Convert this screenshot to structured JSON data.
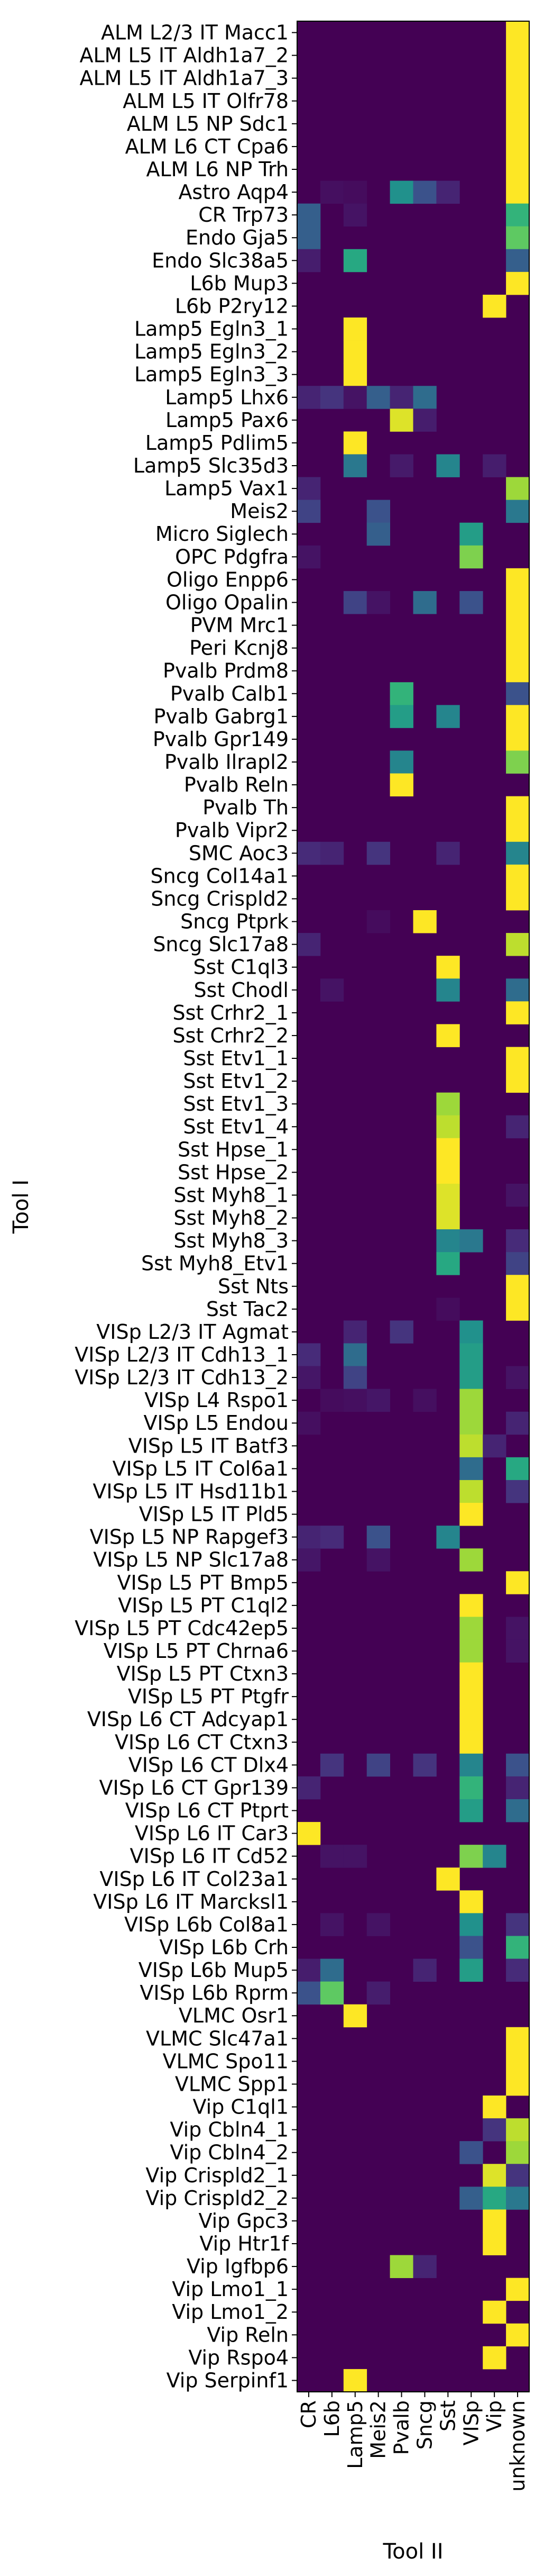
{
  "chart_data": {
    "type": "heatmap",
    "title": "",
    "xlabel": "Tool II",
    "ylabel": "Tool I",
    "grid": false,
    "colormap": [
      "#440154",
      "#472d7b",
      "#3b528b",
      "#2c728e",
      "#21918c",
      "#28ae80",
      "#5ec962",
      "#addc30",
      "#fde725"
    ],
    "colormap_name": "viridis",
    "value_range": [
      0,
      1
    ],
    "x_categories": [
      "CR",
      "L6b",
      "Lamp5",
      "Meis2",
      "Pvalb",
      "Sncg",
      "Sst",
      "VISp",
      "Vip",
      "unknown"
    ],
    "y_categories": [
      "ALM L2/3 IT Macc1",
      "ALM L5 IT Aldh1a7_2",
      "ALM L5 IT Aldh1a7_3",
      "ALM L5 IT Olfr78",
      "ALM L5 NP Sdc1",
      "ALM L6 CT Cpa6",
      "ALM L6 NP Trh",
      "Astro Aqp4",
      "CR Trp73",
      "Endo Gja5",
      "Endo Slc38a5",
      "L6b Mup3",
      "L6b P2ry12",
      "Lamp5 Egln3_1",
      "Lamp5 Egln3_2",
      "Lamp5 Egln3_3",
      "Lamp5 Lhx6",
      "Lamp5 Pax6",
      "Lamp5 Pdlim5",
      "Lamp5 Slc35d3",
      "Lamp5 Vax1",
      "Meis2",
      "Micro Siglech",
      "OPC Pdgfra",
      "Oligo Enpp6",
      "Oligo Opalin",
      "PVM Mrc1",
      "Peri Kcnj8",
      "Pvalb  Prdm8",
      "Pvalb Calb1",
      "Pvalb Gabrg1",
      "Pvalb Gpr149",
      "Pvalb Ilrapl2",
      "Pvalb Reln",
      "Pvalb Th",
      "Pvalb Vipr2",
      "SMC Aoc3",
      "Sncg Col14a1",
      "Sncg Crispld2",
      "Sncg Ptprk",
      "Sncg Slc17a8",
      "Sst C1ql3",
      "Sst Chodl",
      "Sst Crhr2_1",
      "Sst Crhr2_2",
      "Sst Etv1_1",
      "Sst Etv1_2",
      "Sst Etv1_3",
      "Sst Etv1_4",
      "Sst Hpse_1",
      "Sst Hpse_2",
      "Sst Myh8_1",
      "Sst Myh8_2",
      "Sst Myh8_3",
      "Sst Myh8_Etv1",
      "Sst Nts",
      "Sst Tac2",
      "VISp L2/3 IT Agmat",
      "VISp L2/3 IT Cdh13_1",
      "VISp L2/3 IT Cdh13_2",
      "VISp L4 Rspo1",
      "VISp L5 Endou",
      "VISp L5 IT Batf3",
      "VISp L5 IT Col6a1",
      "VISp L5 IT Hsd11b1",
      "VISp L5 IT Pld5",
      "VISp L5 NP Rapgef3",
      "VISp L5 NP Slc17a8",
      "VISp L5 PT Bmp5",
      "VISp L5 PT C1ql2",
      "VISp L5 PT Cdc42ep5",
      "VISp L5 PT Chrna6",
      "VISp L5 PT Ctxn3",
      "VISp L5 PT Ptgfr",
      "VISp L6 CT Adcyap1",
      "VISp L6 CT Ctxn3",
      "VISp L6 CT Dlx4",
      "VISp L6 CT Gpr139",
      "VISp L6 CT Ptprt",
      "VISp L6 IT Car3",
      "VISp L6 IT Cd52",
      "VISp L6 IT Col23a1",
      "VISp L6 IT Marcksl1",
      "VISp L6b Col8a1",
      "VISp L6b Crh",
      "VISp L6b Mup5",
      "VISp L6b Rprm",
      "VLMC Osr1",
      "VLMC Slc47a1",
      "VLMC Spo11",
      "VLMC Spp1",
      "Vip C1ql1",
      "Vip Cbln4_1",
      "Vip Cbln4_2",
      "Vip Crispld2_1",
      "Vip Crispld2_2",
      "Vip Gpc3",
      "Vip Htr1f",
      "Vip Igfbp6",
      "Vip Lmo1_1",
      "Vip Lmo1_2",
      "Vip Reln",
      "Vip Rspo4",
      "Vip Serpinf1"
    ],
    "cells": [
      [
        0,
        9,
        1.0
      ],
      [
        1,
        9,
        1.0
      ],
      [
        2,
        9,
        1.0
      ],
      [
        3,
        9,
        1.0
      ],
      [
        4,
        9,
        1.0
      ],
      [
        5,
        9,
        1.0
      ],
      [
        6,
        9,
        1.0
      ],
      [
        7,
        1,
        0.04
      ],
      [
        7,
        2,
        0.03
      ],
      [
        7,
        4,
        0.5
      ],
      [
        7,
        5,
        0.25
      ],
      [
        7,
        6,
        0.1
      ],
      [
        7,
        9,
        1.0
      ],
      [
        8,
        0,
        0.3
      ],
      [
        8,
        2,
        0.05
      ],
      [
        8,
        9,
        0.65
      ],
      [
        9,
        0,
        0.3
      ],
      [
        9,
        9,
        0.75
      ],
      [
        10,
        0,
        0.08
      ],
      [
        10,
        2,
        0.6
      ],
      [
        10,
        9,
        0.3
      ],
      [
        11,
        9,
        1.0
      ],
      [
        12,
        8,
        1.0
      ],
      [
        13,
        2,
        1.0
      ],
      [
        14,
        2,
        1.0
      ],
      [
        15,
        2,
        1.0
      ],
      [
        16,
        0,
        0.1
      ],
      [
        16,
        1,
        0.15
      ],
      [
        16,
        2,
        0.05
      ],
      [
        16,
        3,
        0.3
      ],
      [
        16,
        4,
        0.1
      ],
      [
        16,
        5,
        0.35
      ],
      [
        17,
        4,
        0.95
      ],
      [
        17,
        5,
        0.08
      ],
      [
        18,
        2,
        1.0
      ],
      [
        19,
        2,
        0.4
      ],
      [
        19,
        4,
        0.07
      ],
      [
        19,
        6,
        0.45
      ],
      [
        19,
        8,
        0.08
      ],
      [
        20,
        0,
        0.1
      ],
      [
        20,
        9,
        0.85
      ],
      [
        21,
        0,
        0.2
      ],
      [
        21,
        3,
        0.25
      ],
      [
        21,
        9,
        0.4
      ],
      [
        22,
        3,
        0.3
      ],
      [
        22,
        7,
        0.55
      ],
      [
        23,
        0,
        0.05
      ],
      [
        23,
        7,
        0.8
      ],
      [
        24,
        9,
        1.0
      ],
      [
        25,
        2,
        0.2
      ],
      [
        25,
        3,
        0.05
      ],
      [
        25,
        5,
        0.35
      ],
      [
        25,
        7,
        0.25
      ],
      [
        25,
        9,
        1.0
      ],
      [
        26,
        9,
        1.0
      ],
      [
        27,
        9,
        1.0
      ],
      [
        28,
        9,
        1.0
      ],
      [
        29,
        4,
        0.65
      ],
      [
        29,
        9,
        0.25
      ],
      [
        30,
        4,
        0.55
      ],
      [
        30,
        6,
        0.45
      ],
      [
        30,
        9,
        1.0
      ],
      [
        31,
        9,
        1.0
      ],
      [
        32,
        4,
        0.45
      ],
      [
        32,
        9,
        0.8
      ],
      [
        33,
        4,
        1.0
      ],
      [
        34,
        9,
        1.0
      ],
      [
        35,
        9,
        1.0
      ],
      [
        36,
        0,
        0.12
      ],
      [
        36,
        1,
        0.1
      ],
      [
        36,
        3,
        0.15
      ],
      [
        36,
        6,
        0.1
      ],
      [
        36,
        9,
        0.45
      ],
      [
        37,
        9,
        1.0
      ],
      [
        38,
        9,
        1.0
      ],
      [
        39,
        3,
        0.03
      ],
      [
        39,
        5,
        1.0
      ],
      [
        40,
        0,
        0.1
      ],
      [
        40,
        9,
        0.9
      ],
      [
        41,
        6,
        1.0
      ],
      [
        42,
        1,
        0.05
      ],
      [
        42,
        6,
        0.45
      ],
      [
        42,
        9,
        0.35
      ],
      [
        43,
        9,
        1.0
      ],
      [
        44,
        6,
        1.0
      ],
      [
        45,
        9,
        1.0
      ],
      [
        46,
        9,
        1.0
      ],
      [
        47,
        6,
        0.85
      ],
      [
        48,
        6,
        0.9
      ],
      [
        48,
        9,
        0.1
      ],
      [
        49,
        6,
        1.0
      ],
      [
        50,
        6,
        1.0
      ],
      [
        51,
        6,
        0.95
      ],
      [
        51,
        9,
        0.05
      ],
      [
        52,
        6,
        0.95
      ],
      [
        53,
        6,
        0.45
      ],
      [
        53,
        7,
        0.4
      ],
      [
        53,
        9,
        0.12
      ],
      [
        54,
        6,
        0.6
      ],
      [
        54,
        9,
        0.2
      ],
      [
        55,
        9,
        1.0
      ],
      [
        56,
        6,
        0.03
      ],
      [
        56,
        9,
        1.0
      ],
      [
        57,
        2,
        0.1
      ],
      [
        57,
        4,
        0.15
      ],
      [
        57,
        7,
        0.5
      ],
      [
        58,
        0,
        0.12
      ],
      [
        58,
        2,
        0.35
      ],
      [
        58,
        7,
        0.55
      ],
      [
        59,
        0,
        0.06
      ],
      [
        59,
        2,
        0.2
      ],
      [
        59,
        7,
        0.55
      ],
      [
        59,
        9,
        0.05
      ],
      [
        60,
        1,
        0.03
      ],
      [
        60,
        2,
        0.04
      ],
      [
        60,
        3,
        0.06
      ],
      [
        60,
        5,
        0.04
      ],
      [
        60,
        7,
        0.85
      ],
      [
        61,
        0,
        0.04
      ],
      [
        61,
        7,
        0.85
      ],
      [
        61,
        9,
        0.1
      ],
      [
        62,
        7,
        0.9
      ],
      [
        62,
        8,
        0.1
      ],
      [
        63,
        7,
        0.35
      ],
      [
        63,
        9,
        0.6
      ],
      [
        64,
        7,
        0.9
      ],
      [
        64,
        9,
        0.15
      ],
      [
        65,
        7,
        1.0
      ],
      [
        66,
        0,
        0.1
      ],
      [
        66,
        1,
        0.12
      ],
      [
        66,
        3,
        0.25
      ],
      [
        66,
        6,
        0.45
      ],
      [
        67,
        0,
        0.06
      ],
      [
        67,
        3,
        0.05
      ],
      [
        67,
        7,
        0.85
      ],
      [
        68,
        9,
        1.0
      ],
      [
        69,
        7,
        1.0
      ],
      [
        70,
        7,
        0.85
      ],
      [
        70,
        9,
        0.05
      ],
      [
        71,
        7,
        0.85
      ],
      [
        71,
        9,
        0.05
      ],
      [
        72,
        7,
        1.0
      ],
      [
        73,
        7,
        1.0
      ],
      [
        74,
        7,
        1.0
      ],
      [
        75,
        7,
        1.0
      ],
      [
        76,
        1,
        0.15
      ],
      [
        76,
        3,
        0.2
      ],
      [
        76,
        5,
        0.15
      ],
      [
        76,
        7,
        0.45
      ],
      [
        76,
        9,
        0.25
      ],
      [
        77,
        0,
        0.1
      ],
      [
        77,
        7,
        0.65
      ],
      [
        77,
        9,
        0.1
      ],
      [
        78,
        7,
        0.55
      ],
      [
        78,
        9,
        0.35
      ],
      [
        79,
        0,
        1.0
      ],
      [
        80,
        1,
        0.05
      ],
      [
        80,
        2,
        0.05
      ],
      [
        80,
        7,
        0.8
      ],
      [
        80,
        8,
        0.45
      ],
      [
        81,
        6,
        1.0
      ],
      [
        82,
        7,
        1.0
      ],
      [
        83,
        1,
        0.05
      ],
      [
        83,
        3,
        0.05
      ],
      [
        83,
        7,
        0.5
      ],
      [
        83,
        9,
        0.15
      ],
      [
        84,
        7,
        0.25
      ],
      [
        84,
        9,
        0.65
      ],
      [
        85,
        0,
        0.08
      ],
      [
        85,
        1,
        0.35
      ],
      [
        85,
        5,
        0.1
      ],
      [
        85,
        7,
        0.55
      ],
      [
        85,
        9,
        0.12
      ],
      [
        86,
        0,
        0.25
      ],
      [
        86,
        1,
        0.75
      ],
      [
        86,
        3,
        0.08
      ],
      [
        87,
        2,
        1.0
      ],
      [
        88,
        9,
        1.0
      ],
      [
        89,
        9,
        1.0
      ],
      [
        90,
        9,
        1.0
      ],
      [
        91,
        8,
        1.0
      ],
      [
        92,
        8,
        0.15
      ],
      [
        92,
        9,
        0.9
      ],
      [
        93,
        7,
        0.25
      ],
      [
        93,
        9,
        0.85
      ],
      [
        94,
        8,
        0.95
      ],
      [
        94,
        9,
        0.15
      ],
      [
        95,
        7,
        0.3
      ],
      [
        95,
        8,
        0.6
      ],
      [
        95,
        9,
        0.4
      ],
      [
        96,
        8,
        1.0
      ],
      [
        97,
        8,
        1.0
      ],
      [
        98,
        4,
        0.85
      ],
      [
        98,
        5,
        0.1
      ],
      [
        99,
        9,
        1.0
      ],
      [
        100,
        8,
        1.0
      ],
      [
        101,
        9,
        1.0
      ],
      [
        102,
        8,
        1.0
      ],
      [
        103,
        2,
        1.0
      ]
    ]
  }
}
